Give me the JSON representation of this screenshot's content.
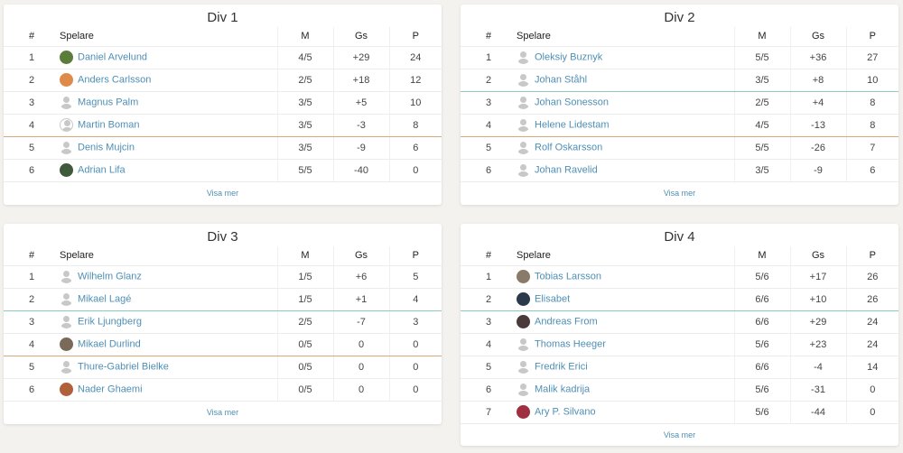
{
  "headers": {
    "num": "#",
    "player": "Spelare",
    "m": "M",
    "gs": "Gs",
    "p": "P"
  },
  "more_label": "Visa mer",
  "colors": {
    "link": "#4f8fb5",
    "promotion_line": "#8ccbb8",
    "relegation_line": "#d8a77a"
  },
  "divisions": [
    {
      "title": "Div 1",
      "rows": [
        {
          "pos": "1",
          "name": "Daniel Arvelund",
          "m": "4/5",
          "gs": "+29",
          "p": "24",
          "avatar": "photo",
          "avatar_color": "#5a7d3a"
        },
        {
          "pos": "2",
          "name": "Anders Carlsson",
          "m": "2/5",
          "gs": "+18",
          "p": "12",
          "avatar": "photo",
          "avatar_color": "#e08a4a"
        },
        {
          "pos": "3",
          "name": "Magnus Palm",
          "m": "3/5",
          "gs": "+5",
          "p": "10",
          "avatar": "default"
        },
        {
          "pos": "4",
          "name": "Martin Boman",
          "m": "3/5",
          "gs": "-3",
          "p": "8",
          "avatar": "ring",
          "line": "orange"
        },
        {
          "pos": "5",
          "name": "Denis Mujcin",
          "m": "3/5",
          "gs": "-9",
          "p": "6",
          "avatar": "default"
        },
        {
          "pos": "6",
          "name": "Adrian Lifa",
          "m": "5/5",
          "gs": "-40",
          "p": "0",
          "avatar": "photo",
          "avatar_color": "#3f5a3a"
        }
      ]
    },
    {
      "title": "Div 2",
      "rows": [
        {
          "pos": "1",
          "name": "Oleksiy Buznyk",
          "m": "5/5",
          "gs": "+36",
          "p": "27",
          "avatar": "default"
        },
        {
          "pos": "2",
          "name": "Johan Ståhl",
          "m": "3/5",
          "gs": "+8",
          "p": "10",
          "avatar": "default",
          "line": "green"
        },
        {
          "pos": "3",
          "name": "Johan Sonesson",
          "m": "2/5",
          "gs": "+4",
          "p": "8",
          "avatar": "default"
        },
        {
          "pos": "4",
          "name": "Helene Lidestam",
          "m": "4/5",
          "gs": "-13",
          "p": "8",
          "avatar": "default",
          "line": "orange"
        },
        {
          "pos": "5",
          "name": "Rolf Oskarsson",
          "m": "5/5",
          "gs": "-26",
          "p": "7",
          "avatar": "default"
        },
        {
          "pos": "6",
          "name": "Johan Ravelid",
          "m": "3/5",
          "gs": "-9",
          "p": "6",
          "avatar": "default"
        }
      ]
    },
    {
      "title": "Div 3",
      "rows": [
        {
          "pos": "1",
          "name": "Wilhelm Glanz",
          "m": "1/5",
          "gs": "+6",
          "p": "5",
          "avatar": "default"
        },
        {
          "pos": "2",
          "name": "Mikael Lagé",
          "m": "1/5",
          "gs": "+1",
          "p": "4",
          "avatar": "default",
          "line": "green"
        },
        {
          "pos": "3",
          "name": "Erik Ljungberg",
          "m": "2/5",
          "gs": "-7",
          "p": "3",
          "avatar": "default"
        },
        {
          "pos": "4",
          "name": "Mikael Durlind",
          "m": "0/5",
          "gs": "0",
          "p": "0",
          "avatar": "photo",
          "avatar_color": "#7a6a5a",
          "line": "orange"
        },
        {
          "pos": "5",
          "name": "Thure-Gabriel Bielke",
          "m": "0/5",
          "gs": "0",
          "p": "0",
          "avatar": "default"
        },
        {
          "pos": "6",
          "name": "Nader Ghaemi",
          "m": "0/5",
          "gs": "0",
          "p": "0",
          "avatar": "photo",
          "avatar_color": "#b0603a"
        }
      ]
    },
    {
      "title": "Div 4",
      "rows": [
        {
          "pos": "1",
          "name": "Tobias Larsson",
          "m": "5/6",
          "gs": "+17",
          "p": "26",
          "avatar": "photo",
          "avatar_color": "#8a7a6a"
        },
        {
          "pos": "2",
          "name": "Elisabet",
          "m": "6/6",
          "gs": "+10",
          "p": "26",
          "avatar": "photo",
          "avatar_color": "#2a3a4a",
          "line": "green"
        },
        {
          "pos": "3",
          "name": "Andreas From",
          "m": "6/6",
          "gs": "+29",
          "p": "24",
          "avatar": "photo",
          "avatar_color": "#4a3a3a"
        },
        {
          "pos": "4",
          "name": "Thomas Heeger",
          "m": "5/6",
          "gs": "+23",
          "p": "24",
          "avatar": "default"
        },
        {
          "pos": "5",
          "name": "Fredrik Erici",
          "m": "6/6",
          "gs": "-4",
          "p": "14",
          "avatar": "default"
        },
        {
          "pos": "6",
          "name": "Malik kadrija",
          "m": "5/6",
          "gs": "-31",
          "p": "0",
          "avatar": "default"
        },
        {
          "pos": "7",
          "name": "Ary P. Silvano",
          "m": "5/6",
          "gs": "-44",
          "p": "0",
          "avatar": "photo",
          "avatar_color": "#a03040"
        }
      ]
    }
  ]
}
